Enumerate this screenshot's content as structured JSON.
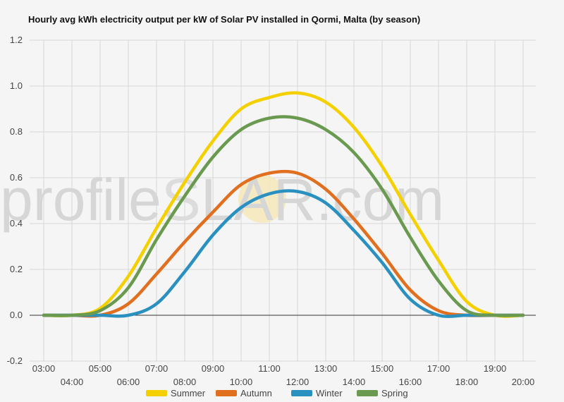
{
  "watermark": {
    "left_text": "profile",
    "s_letter": "S",
    "right_text": "LAR.com"
  },
  "chart_data": {
    "type": "line",
    "title": "Hourly avg kWh electricity output per kW of Solar PV installed in Qormi, Malta (by season)",
    "xlabel": "",
    "ylabel": "",
    "x": [
      "03:00",
      "04:00",
      "05:00",
      "06:00",
      "07:00",
      "08:00",
      "09:00",
      "10:00",
      "11:00",
      "12:00",
      "13:00",
      "14:00",
      "15:00",
      "16:00",
      "17:00",
      "18:00",
      "19:00",
      "20:00"
    ],
    "ylim": [
      -0.2,
      1.2
    ],
    "yticks": [
      "-0.2",
      "0.0",
      "0.2",
      "0.4",
      "0.6",
      "0.8",
      "1.0",
      "1.2"
    ],
    "grid": true,
    "legend_position": "bottom",
    "series": [
      {
        "name": "Summer",
        "color": "#f5d000",
        "values": [
          0.0,
          0.0,
          0.03,
          0.17,
          0.38,
          0.58,
          0.76,
          0.9,
          0.95,
          0.97,
          0.93,
          0.82,
          0.65,
          0.44,
          0.24,
          0.06,
          0.0,
          0.0
        ]
      },
      {
        "name": "Autumn",
        "color": "#e07020",
        "values": [
          0.0,
          0.0,
          0.0,
          0.05,
          0.18,
          0.32,
          0.45,
          0.57,
          0.62,
          0.62,
          0.55,
          0.42,
          0.27,
          0.11,
          0.02,
          0.0,
          0.0,
          0.0
        ]
      },
      {
        "name": "Winter",
        "color": "#2a90c0",
        "values": [
          0.0,
          0.0,
          0.0,
          0.0,
          0.05,
          0.19,
          0.35,
          0.47,
          0.53,
          0.54,
          0.49,
          0.37,
          0.23,
          0.07,
          0.0,
          0.0,
          0.0,
          0.0
        ]
      },
      {
        "name": "Spring",
        "color": "#6a9a50",
        "values": [
          0.0,
          0.0,
          0.02,
          0.12,
          0.33,
          0.52,
          0.69,
          0.81,
          0.86,
          0.86,
          0.81,
          0.71,
          0.55,
          0.34,
          0.15,
          0.02,
          0.0,
          0.0
        ]
      }
    ]
  }
}
